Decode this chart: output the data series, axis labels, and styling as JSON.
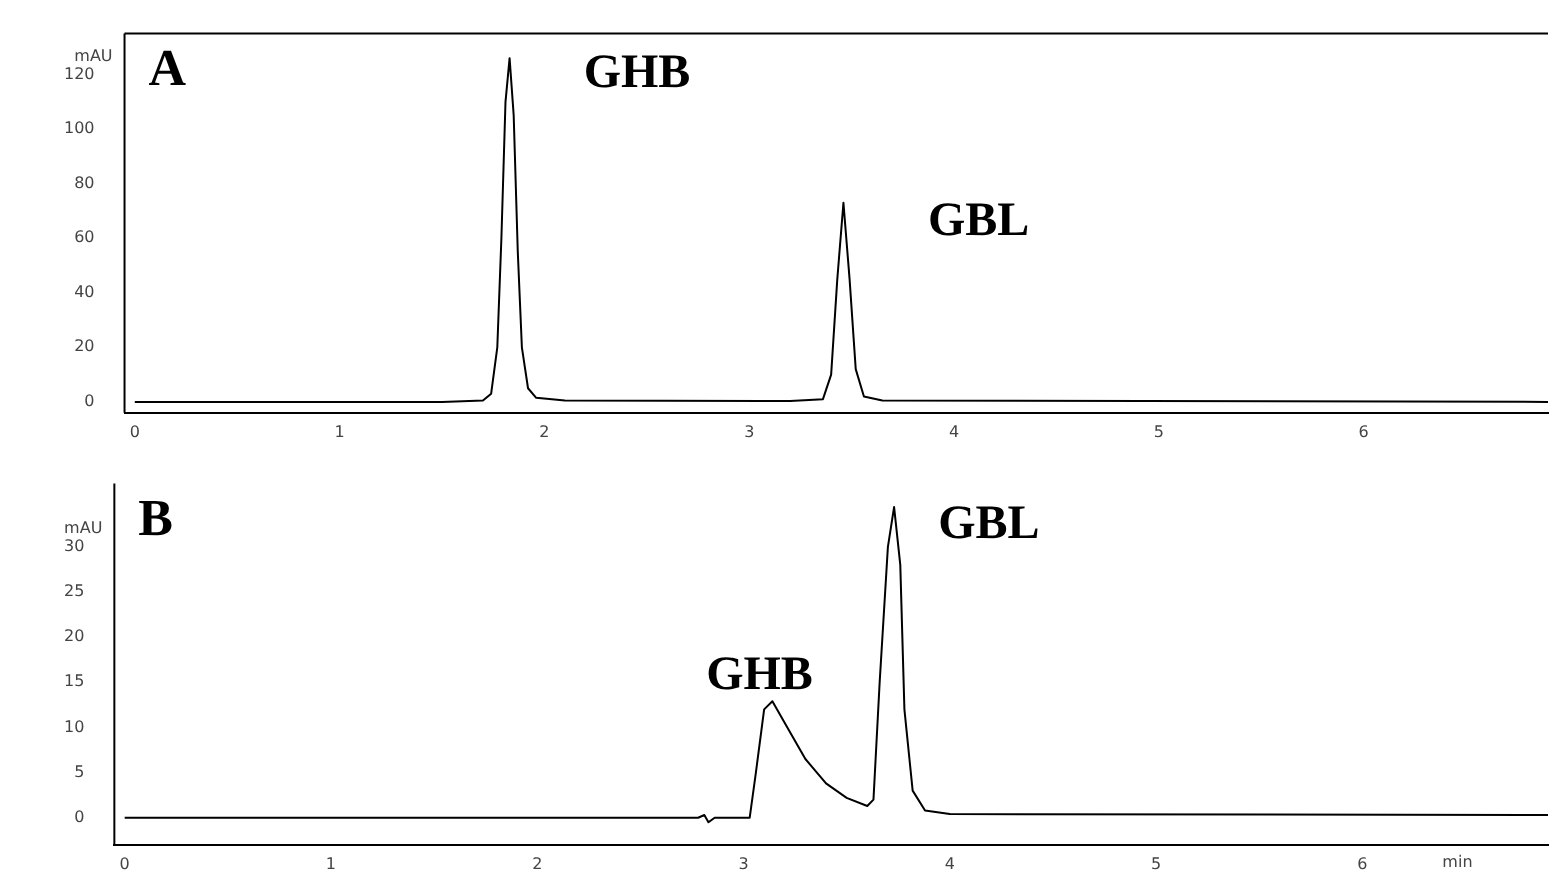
{
  "chart_data": [
    {
      "type": "line",
      "ylabel": "mAU",
      "xlim": [
        -0.05,
        6.9
      ],
      "ylim": [
        -4,
        135
      ],
      "xticks": [
        0,
        1,
        2,
        3,
        4,
        5,
        6
      ],
      "yticks": [
        0,
        20,
        40,
        60,
        80,
        100,
        120
      ],
      "grid": false,
      "legend": false,
      "marker": "none",
      "line_style": "solid",
      "annotations": [
        "A",
        "GHB",
        "GBL"
      ],
      "series": [
        {
          "color": "#000000",
          "x": [
            0,
            1.5,
            1.7,
            1.74,
            1.77,
            1.79,
            1.81,
            1.83,
            1.85,
            1.87,
            1.89,
            1.92,
            1.96,
            2.1,
            3.2,
            3.36,
            3.4,
            3.43,
            3.46,
            3.49,
            3.52,
            3.56,
            3.65,
            6.9
          ],
          "values": [
            0,
            0,
            0.5,
            3,
            20,
            60,
            110,
            126,
            105,
            55,
            20,
            5,
            1.5,
            0.5,
            0.3,
            1,
            10,
            45,
            73,
            45,
            12,
            2,
            0.5,
            0
          ]
        }
      ]
    },
    {
      "type": "line",
      "ylabel": "mAU",
      "xlabel": "min",
      "xlim": [
        -0.05,
        6.9
      ],
      "ylim": [
        -3,
        37
      ],
      "xticks": [
        0,
        1,
        2,
        3,
        4,
        5,
        6
      ],
      "yticks": [
        0,
        5,
        10,
        15,
        20,
        25,
        30
      ],
      "grid": false,
      "legend": false,
      "marker": "none",
      "line_style": "solid",
      "annotations": [
        "B",
        "GHB",
        "GBL"
      ],
      "series": [
        {
          "color": "#000000",
          "x": [
            0,
            2.78,
            2.81,
            2.83,
            2.86,
            3.03,
            3.06,
            3.1,
            3.14,
            3.2,
            3.3,
            3.4,
            3.5,
            3.6,
            3.63,
            3.66,
            3.7,
            3.73,
            3.76,
            3.78,
            3.82,
            3.88,
            4.0,
            6.9
          ],
          "values": [
            0,
            0,
            0.3,
            -0.5,
            0,
            0,
            5,
            12,
            12.9,
            10.5,
            6.5,
            3.8,
            2.2,
            1.3,
            2,
            15,
            30,
            34.4,
            28,
            12,
            3,
            0.8,
            0.4,
            0.3
          ]
        }
      ]
    }
  ]
}
